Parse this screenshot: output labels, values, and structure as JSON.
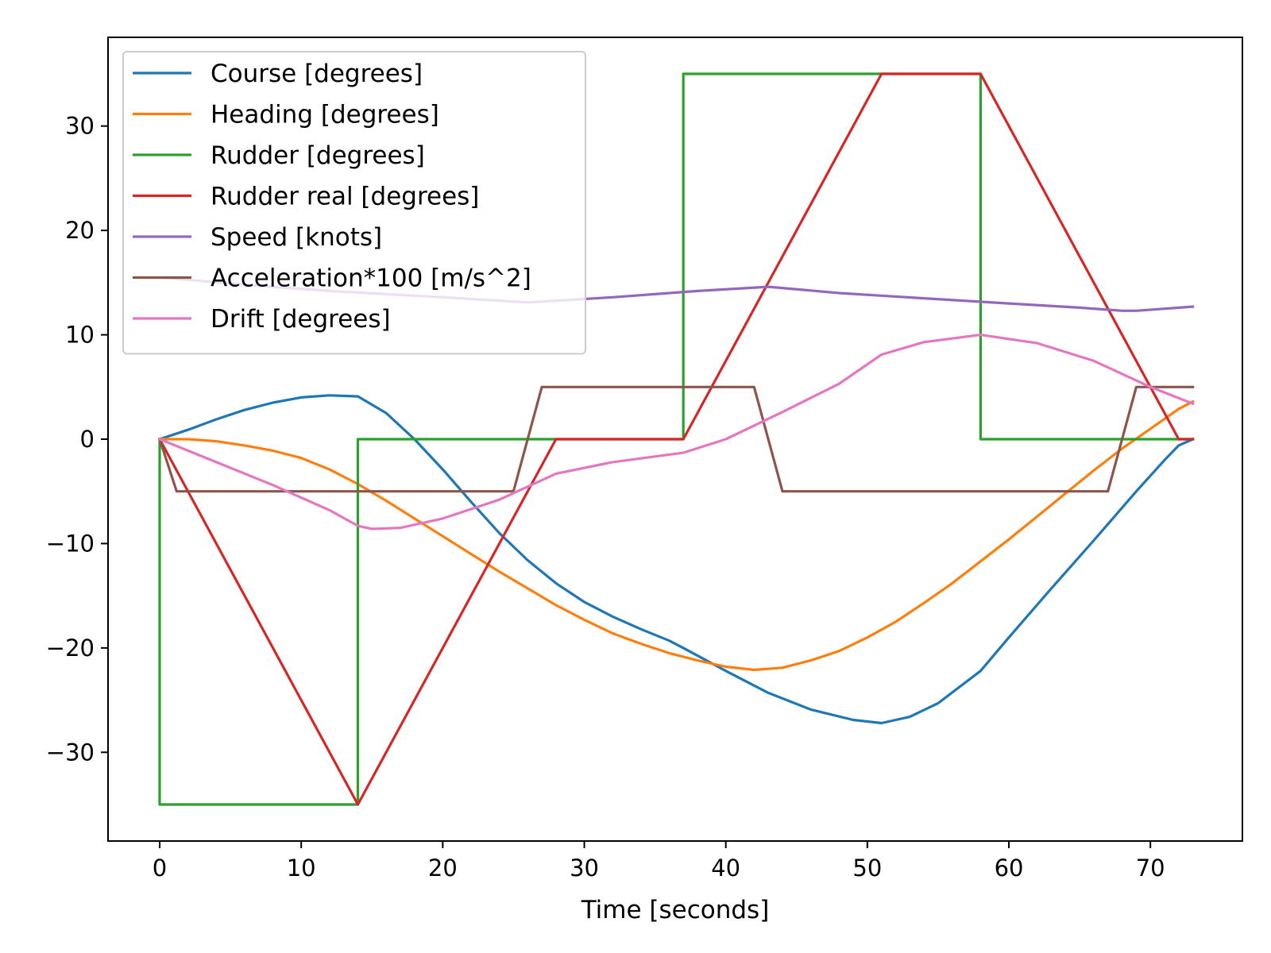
{
  "chart_data": {
    "type": "line",
    "title": "",
    "xlabel": "Time [seconds]",
    "ylabel": "",
    "xlim": [
      -3.65,
      76.5
    ],
    "ylim": [
      -38.5,
      38.5
    ],
    "xticks": [
      0,
      10,
      20,
      30,
      40,
      50,
      60,
      70
    ],
    "yticks": [
      -30,
      -20,
      -10,
      0,
      10,
      20,
      30
    ],
    "xtick_labels": [
      "0",
      "10",
      "20",
      "30",
      "40",
      "50",
      "60",
      "70"
    ],
    "ytick_labels": [
      "−30",
      "−20",
      "−10",
      "0",
      "10",
      "20",
      "30"
    ],
    "grid": false,
    "legend_position": "upper-left",
    "series": [
      {
        "name": "Course [degrees]",
        "color": "#1f77b4",
        "points": [
          [
            0,
            0
          ],
          [
            2,
            0.9
          ],
          [
            4,
            1.9
          ],
          [
            6,
            2.8
          ],
          [
            8,
            3.5
          ],
          [
            10,
            4.0
          ],
          [
            12,
            4.2
          ],
          [
            14,
            4.1
          ],
          [
            16,
            2.5
          ],
          [
            18,
            0
          ],
          [
            20,
            -2.9
          ],
          [
            22,
            -6.0
          ],
          [
            24,
            -9.0
          ],
          [
            26,
            -11.6
          ],
          [
            28,
            -13.8
          ],
          [
            30,
            -15.6
          ],
          [
            32,
            -17.0
          ],
          [
            34,
            -18.2
          ],
          [
            36,
            -19.3
          ],
          [
            37,
            -20.0
          ],
          [
            40,
            -22.2
          ],
          [
            43,
            -24.3
          ],
          [
            46,
            -25.9
          ],
          [
            49,
            -26.9
          ],
          [
            51,
            -27.2
          ],
          [
            53,
            -26.6
          ],
          [
            55,
            -25.3
          ],
          [
            58,
            -22.2
          ],
          [
            60,
            -19.0
          ],
          [
            63,
            -14.3
          ],
          [
            66,
            -9.7
          ],
          [
            69,
            -5.0
          ],
          [
            71,
            -2.0
          ],
          [
            72,
            -0.6
          ],
          [
            73,
            0
          ]
        ]
      },
      {
        "name": "Heading [degrees]",
        "color": "#ff7f0e",
        "points": [
          [
            0,
            0
          ],
          [
            2,
            0
          ],
          [
            4,
            -0.2
          ],
          [
            6,
            -0.6
          ],
          [
            8,
            -1.1
          ],
          [
            10,
            -1.8
          ],
          [
            12,
            -2.9
          ],
          [
            14,
            -4.3
          ],
          [
            16,
            -5.9
          ],
          [
            18,
            -7.6
          ],
          [
            20,
            -9.3
          ],
          [
            22,
            -11.0
          ],
          [
            24,
            -12.7
          ],
          [
            26,
            -14.3
          ],
          [
            28,
            -15.9
          ],
          [
            30,
            -17.3
          ],
          [
            32,
            -18.6
          ],
          [
            34,
            -19.6
          ],
          [
            36,
            -20.5
          ],
          [
            38,
            -21.2
          ],
          [
            40,
            -21.8
          ],
          [
            42,
            -22.1
          ],
          [
            44,
            -21.9
          ],
          [
            46,
            -21.2
          ],
          [
            48,
            -20.3
          ],
          [
            50,
            -19.0
          ],
          [
            52,
            -17.5
          ],
          [
            54,
            -15.7
          ],
          [
            56,
            -13.8
          ],
          [
            58,
            -11.7
          ],
          [
            60,
            -9.6
          ],
          [
            62,
            -7.4
          ],
          [
            64,
            -5.2
          ],
          [
            66,
            -3.0
          ],
          [
            68,
            -0.9
          ],
          [
            70,
            1.0
          ],
          [
            72,
            2.9
          ],
          [
            73,
            3.6
          ]
        ]
      },
      {
        "name": "Rudder [degrees]",
        "color": "#2ca02c",
        "points": [
          [
            0,
            0
          ],
          [
            0,
            -35
          ],
          [
            14,
            -35
          ],
          [
            14,
            0
          ],
          [
            37,
            0
          ],
          [
            37,
            35
          ],
          [
            58,
            35
          ],
          [
            58,
            0
          ],
          [
            73,
            0
          ]
        ]
      },
      {
        "name": "Rudder real [degrees]",
        "color": "#d62728",
        "points": [
          [
            0,
            0
          ],
          [
            14,
            -35
          ],
          [
            28,
            0
          ],
          [
            37,
            0
          ],
          [
            51,
            35
          ],
          [
            58,
            35
          ],
          [
            72,
            0
          ],
          [
            73,
            0
          ]
        ]
      },
      {
        "name": "Speed [knots]",
        "color": "#9467bd",
        "points": [
          [
            0,
            15.5
          ],
          [
            6,
            14.8
          ],
          [
            12,
            14.2
          ],
          [
            20,
            13.6
          ],
          [
            26,
            13.1
          ],
          [
            32,
            13.6
          ],
          [
            38,
            14.2
          ],
          [
            43,
            14.6
          ],
          [
            48,
            14.0
          ],
          [
            54,
            13.5
          ],
          [
            60,
            13.0
          ],
          [
            65,
            12.6
          ],
          [
            68,
            12.3
          ],
          [
            69,
            12.3
          ],
          [
            73,
            12.7
          ]
        ]
      },
      {
        "name": "Acceleration*100 [m/s^2]",
        "color": "#8c564b",
        "points": [
          [
            0,
            0
          ],
          [
            1.2,
            -5
          ],
          [
            25,
            -5
          ],
          [
            27,
            5
          ],
          [
            42,
            5
          ],
          [
            44,
            -5
          ],
          [
            67,
            -5
          ],
          [
            69,
            5
          ],
          [
            73,
            5
          ]
        ]
      },
      {
        "name": "Drift [degrees]",
        "color": "#e377c2",
        "points": [
          [
            0,
            0
          ],
          [
            4,
            -2.2
          ],
          [
            8,
            -4.4
          ],
          [
            12,
            -6.8
          ],
          [
            14,
            -8.3
          ],
          [
            15,
            -8.6
          ],
          [
            17,
            -8.5
          ],
          [
            20,
            -7.6
          ],
          [
            24,
            -5.8
          ],
          [
            28,
            -3.3
          ],
          [
            32,
            -2.2
          ],
          [
            37,
            -1.3
          ],
          [
            40,
            0
          ],
          [
            44,
            2.6
          ],
          [
            48,
            5.3
          ],
          [
            51,
            8.1
          ],
          [
            54,
            9.3
          ],
          [
            58,
            10.0
          ],
          [
            62,
            9.2
          ],
          [
            66,
            7.5
          ],
          [
            70,
            5.0
          ],
          [
            73,
            3.4
          ]
        ]
      }
    ]
  }
}
